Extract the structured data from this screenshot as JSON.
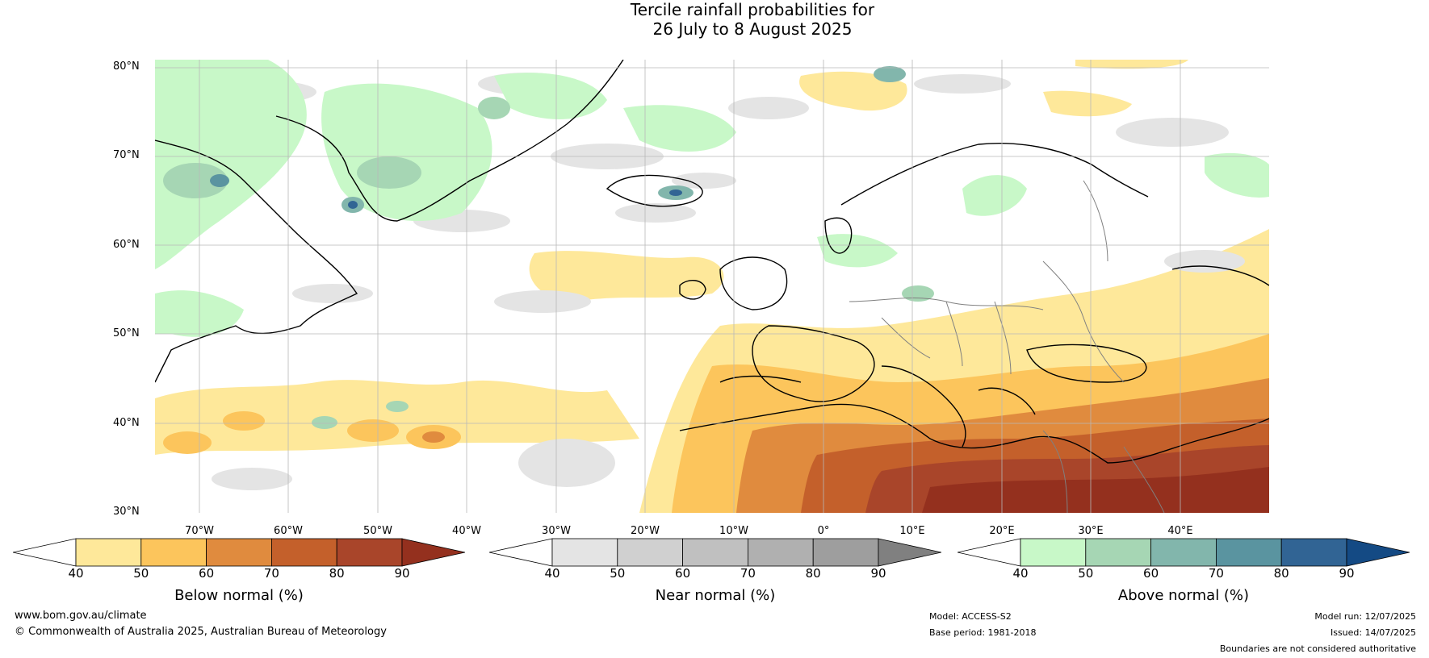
{
  "title": {
    "line1": "Tercile rainfall probabilities for",
    "line2": "26 July to 8 August 2025"
  },
  "latitudes": [
    "80°N",
    "70°N",
    "60°N",
    "50°N",
    "40°N",
    "30°N"
  ],
  "longitudes": [
    "70°W",
    "60°W",
    "50°W",
    "40°W",
    "30°W",
    "20°W",
    "10°W",
    "0°",
    "10°E",
    "20°E",
    "30°E",
    "40°E"
  ],
  "legends": [
    {
      "title": "Below normal (%)",
      "ticks": [
        "40",
        "50",
        "60",
        "70",
        "80",
        "90"
      ],
      "colors": [
        "#ffffff",
        "#fee89a",
        "#fcc55c",
        "#e08b3e",
        "#c4602b",
        "#a9452a",
        "#94301e"
      ]
    },
    {
      "title": "Near normal (%)",
      "ticks": [
        "40",
        "50",
        "60",
        "70",
        "80",
        "90"
      ],
      "colors": [
        "#ffffff",
        "#e4e4e4",
        "#d0d0d0",
        "#c0c0c0",
        "#b0b0b0",
        "#9e9e9e",
        "#808080"
      ]
    },
    {
      "title": "Above normal (%)",
      "ticks": [
        "40",
        "50",
        "60",
        "70",
        "80",
        "90"
      ],
      "colors": [
        "#ffffff",
        "#c8f8c8",
        "#a6d6b4",
        "#82b6ac",
        "#5a94a0",
        "#316494",
        "#144a84"
      ]
    }
  ],
  "footer": {
    "website": "www.bom.gov.au/climate",
    "copyright": "© Commonwealth of Australia 2025, Australian Bureau of Meteorology",
    "model": "Model: ACCESS-S2",
    "base_period": "Base period: 1981-2018",
    "model_run": "Model run: 12/07/2025",
    "issued": "Issued: 14/07/2025",
    "disclaimer": "Boundaries are not considered authoritative"
  }
}
